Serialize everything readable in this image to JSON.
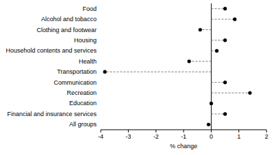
{
  "chart_data": {
    "type": "dot",
    "orientation": "horizontal",
    "categories": [
      "Food",
      "Alcohol and tobacco",
      "Clothing and footwear",
      "Housing",
      "Household contents and services",
      "Health",
      "Transportation",
      "Communication",
      "Recreation",
      "Education",
      "Financial and insurance services",
      "All groups"
    ],
    "values": [
      0.5,
      0.85,
      -0.4,
      0.5,
      0.2,
      -0.8,
      -3.85,
      0.5,
      1.4,
      0.0,
      0.5,
      -0.1
    ],
    "color": "#000000",
    "xlabel": "% change",
    "xlim": [
      -4,
      2
    ],
    "xticks": [
      -4,
      -3,
      -2,
      -1,
      0,
      1,
      2
    ],
    "grid": false
  }
}
